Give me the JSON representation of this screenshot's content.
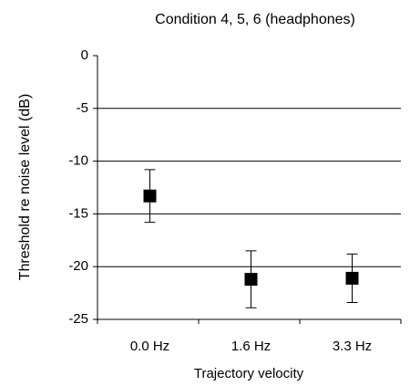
{
  "chart_data": {
    "type": "errorbar",
    "title": "Condition 4, 5, 6 (headphones)",
    "xlabel": "Trajectory velocity",
    "ylabel": "Threshold re noise level (dB)",
    "categories": [
      "0.0 Hz",
      "1.6 Hz",
      "3.3 Hz"
    ],
    "values": [
      -13.3,
      -21.2,
      -21.1
    ],
    "errors": [
      2.5,
      2.7,
      2.3
    ],
    "color": "#000000",
    "ylim": [
      -25,
      0
    ],
    "yticks": [
      -25,
      -20,
      -15,
      -10,
      -5,
      0
    ],
    "grid": true
  }
}
